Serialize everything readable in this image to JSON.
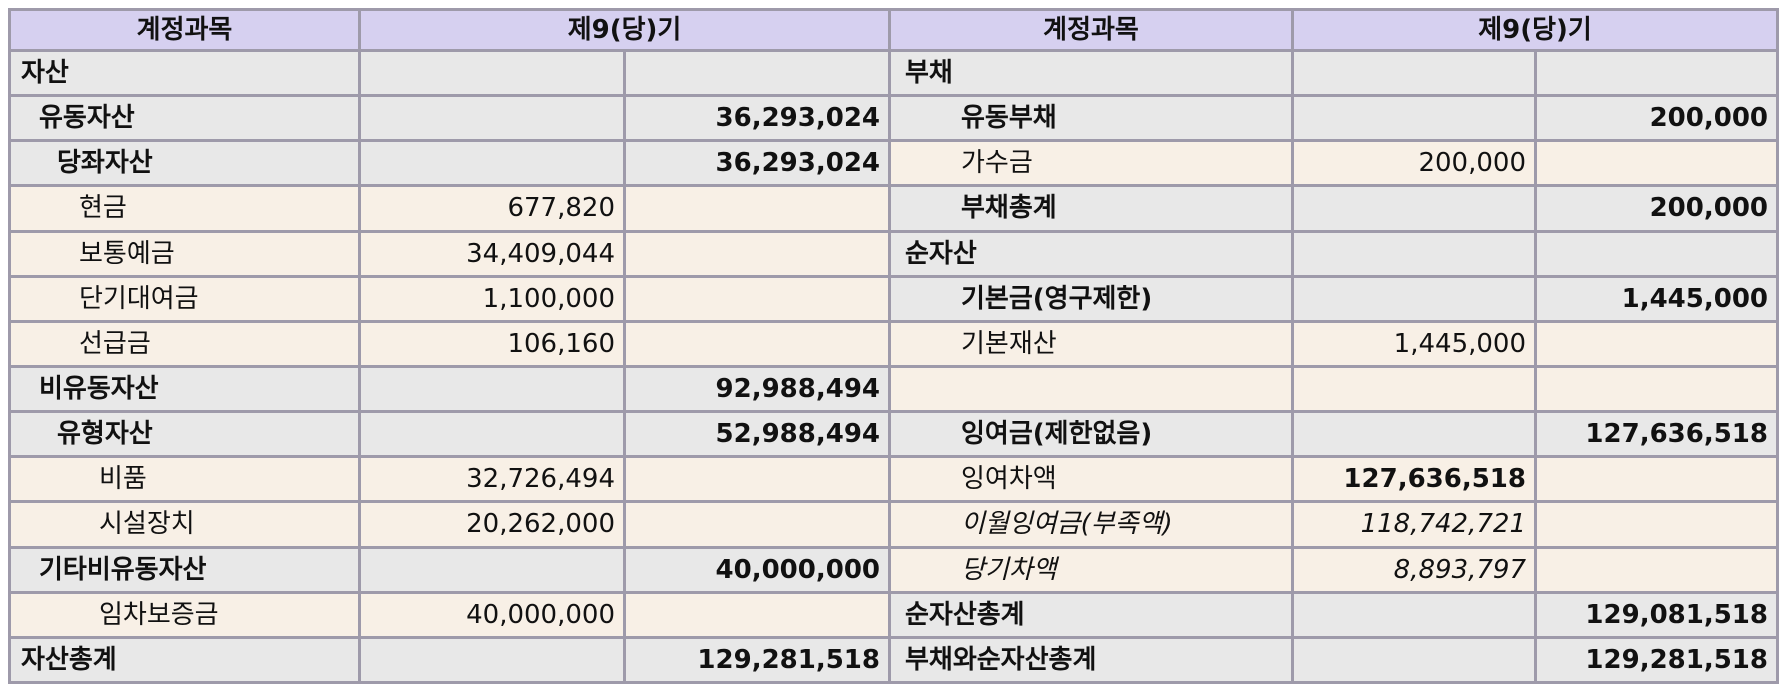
{
  "header": {
    "left_account": "계정과목",
    "left_period": "제9(당)기",
    "right_account": "계정과목",
    "right_period": "제9(당)기"
  },
  "rows": [
    {
      "l_name": "자산",
      "l_sub": "",
      "l_tot": "",
      "r_name": "부채",
      "r_sub": "",
      "r_tot": ""
    },
    {
      "l_name": "유동자산",
      "l_sub": "",
      "l_tot": "36,293,024",
      "r_name": "유동부채",
      "r_sub": "",
      "r_tot": "200,000"
    },
    {
      "l_name": "당좌자산",
      "l_sub": "",
      "l_tot": "36,293,024",
      "r_name": "가수금",
      "r_sub": "200,000",
      "r_tot": ""
    },
    {
      "l_name": "현금",
      "l_sub": "677,820",
      "l_tot": "",
      "r_name": "부채총계",
      "r_sub": "",
      "r_tot": "200,000"
    },
    {
      "l_name": "보통예금",
      "l_sub": "34,409,044",
      "l_tot": "",
      "r_name": "순자산",
      "r_sub": "",
      "r_tot": ""
    },
    {
      "l_name": "단기대여금",
      "l_sub": "1,100,000",
      "l_tot": "",
      "r_name": "기본금(영구제한)",
      "r_sub": "",
      "r_tot": "1,445,000"
    },
    {
      "l_name": "선급금",
      "l_sub": "106,160",
      "l_tot": "",
      "r_name": "기본재산",
      "r_sub": "1,445,000",
      "r_tot": ""
    },
    {
      "l_name": "비유동자산",
      "l_sub": "",
      "l_tot": "92,988,494",
      "r_name": "",
      "r_sub": "",
      "r_tot": ""
    },
    {
      "l_name": "유형자산",
      "l_sub": "",
      "l_tot": "52,988,494",
      "r_name": "잉여금(제한없음)",
      "r_sub": "",
      "r_tot": "127,636,518"
    },
    {
      "l_name": "비품",
      "l_sub": "32,726,494",
      "l_tot": "",
      "r_name": "잉여차액",
      "r_sub": "127,636,518",
      "r_tot": ""
    },
    {
      "l_name": "시설장치",
      "l_sub": "20,262,000",
      "l_tot": "",
      "r_name": "이월잉여금(부족액)",
      "r_sub": "118,742,721",
      "r_tot": ""
    },
    {
      "l_name": "기타비유동자산",
      "l_sub": "",
      "l_tot": "40,000,000",
      "r_name": "당기차액",
      "r_sub": "8,893,797",
      "r_tot": ""
    },
    {
      "l_name": "임차보증금",
      "l_sub": "40,000,000",
      "l_tot": "",
      "r_name": "순자산총계",
      "r_sub": "",
      "r_tot": "129,081,518"
    },
    {
      "l_name": "자산총계",
      "l_sub": "",
      "l_tot": "129,281,518",
      "r_name": "부채와순자산총계",
      "r_sub": "",
      "r_tot": "129,281,518"
    }
  ],
  "colors": {
    "header_bg": "#d6d0f0",
    "gray_row_bg": "#e8e8e8",
    "cream_row_bg": "#f8f0e6",
    "border": "#9e9aaa"
  }
}
